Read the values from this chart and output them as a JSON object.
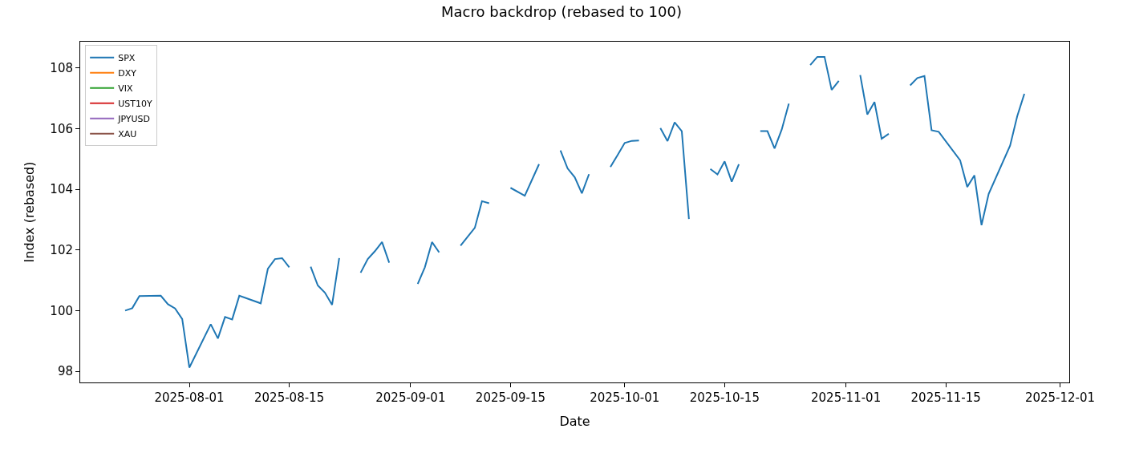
{
  "chart_data": {
    "type": "line",
    "title": "Macro backdrop (rebased to 100)",
    "xlabel": "Date",
    "ylabel": "Index (rebased)",
    "xlim": [
      "2025-07-16T17:00",
      "2025-12-02T07:00"
    ],
    "ylim": [
      97.63,
      108.87
    ],
    "xticks": [
      "2025-08-01",
      "2025-08-15",
      "2025-09-01",
      "2025-09-15",
      "2025-10-01",
      "2025-10-15",
      "2025-11-01",
      "2025-11-15",
      "2025-12-01"
    ],
    "yticks": [
      98,
      100,
      102,
      104,
      106,
      108
    ],
    "grid": false,
    "legend": "top left",
    "marker": "none",
    "line_style": "solid",
    "series": [
      {
        "name": "SPX",
        "color": "#1f77b4",
        "x": [
          "2025-07-23",
          "2025-07-24",
          "2025-07-25",
          "2025-07-28",
          "2025-07-29",
          "2025-07-30",
          "2025-07-31",
          "2025-08-01",
          "2025-08-04",
          "2025-08-05",
          "2025-08-06",
          "2025-08-07",
          "2025-08-08",
          "2025-08-11",
          "2025-08-12",
          "2025-08-13",
          "2025-08-14",
          "2025-08-15",
          "2025-08-16",
          "2025-08-18",
          "2025-08-19",
          "2025-08-20",
          "2025-08-21",
          "2025-08-22",
          "2025-08-23",
          "2025-08-25",
          "2025-08-26",
          "2025-08-27",
          "2025-08-28",
          "2025-08-29",
          "2025-08-31",
          "2025-09-02",
          "2025-09-03",
          "2025-09-04",
          "2025-09-05",
          "2025-09-06",
          "2025-09-08",
          "2025-09-10",
          "2025-09-11",
          "2025-09-12",
          "2025-09-13",
          "2025-09-15",
          "2025-09-17",
          "2025-09-19",
          "2025-09-20",
          "2025-09-22",
          "2025-09-23",
          "2025-09-24",
          "2025-09-25",
          "2025-09-26",
          "2025-09-27",
          "2025-09-29",
          "2025-09-30",
          "2025-10-01",
          "2025-10-02",
          "2025-10-03",
          "2025-10-04",
          "2025-10-06",
          "2025-10-07",
          "2025-10-08",
          "2025-10-09",
          "2025-10-10",
          "2025-10-11",
          "2025-10-13",
          "2025-10-14",
          "2025-10-15",
          "2025-10-16",
          "2025-10-17",
          "2025-10-18",
          "2025-10-20",
          "2025-10-21",
          "2025-10-22",
          "2025-10-23",
          "2025-10-24",
          "2025-10-25",
          "2025-10-27",
          "2025-10-28",
          "2025-10-29",
          "2025-10-30",
          "2025-10-31",
          "2025-11-01",
          "2025-11-03",
          "2025-11-04",
          "2025-11-05",
          "2025-11-06",
          "2025-11-07",
          "2025-11-08",
          "2025-11-10",
          "2025-11-11",
          "2025-11-12",
          "2025-11-13",
          "2025-11-14",
          "2025-11-17",
          "2025-11-18",
          "2025-11-19",
          "2025-11-20",
          "2025-11-21",
          "2025-11-24",
          "2025-11-25",
          "2025-11-26"
        ],
        "values": [
          100.0,
          100.08,
          100.48,
          100.49,
          100.21,
          100.07,
          99.72,
          98.12,
          99.55,
          99.08,
          99.79,
          99.71,
          100.49,
          100.24,
          101.38,
          101.7,
          101.73,
          101.43,
          null,
          101.45,
          100.83,
          100.59,
          100.19,
          101.73,
          null,
          101.25,
          101.7,
          101.96,
          102.26,
          101.58,
          null,
          100.88,
          101.43,
          102.26,
          101.92,
          null,
          102.14,
          102.73,
          103.61,
          103.54,
          null,
          104.05,
          103.79,
          104.83,
          null,
          105.28,
          104.69,
          104.4,
          103.87,
          104.5,
          null,
          104.74,
          105.13,
          105.53,
          105.6,
          105.61,
          null,
          106.02,
          105.59,
          106.21,
          105.92,
          103.02,
          null,
          104.67,
          104.49,
          104.92,
          104.25,
          104.83,
          null,
          105.92,
          105.92,
          105.35,
          105.97,
          106.83,
          null,
          108.1,
          108.37,
          108.37,
          107.28,
          107.58,
          null,
          107.77,
          106.47,
          106.88,
          105.67,
          105.83,
          null,
          107.43,
          107.67,
          107.74,
          105.95,
          105.9,
          104.96,
          104.08,
          104.46,
          102.82,
          103.85,
          105.44,
          106.41,
          107.15
        ]
      },
      {
        "name": "DXY",
        "color": "#ff7f0e"
      },
      {
        "name": "VIX",
        "color": "#2ca02c"
      },
      {
        "name": "UST10Y",
        "color": "#d62728"
      },
      {
        "name": "JPYUSD",
        "color": "#9467bd"
      },
      {
        "name": "XAU",
        "color": "#8c564b"
      }
    ]
  }
}
